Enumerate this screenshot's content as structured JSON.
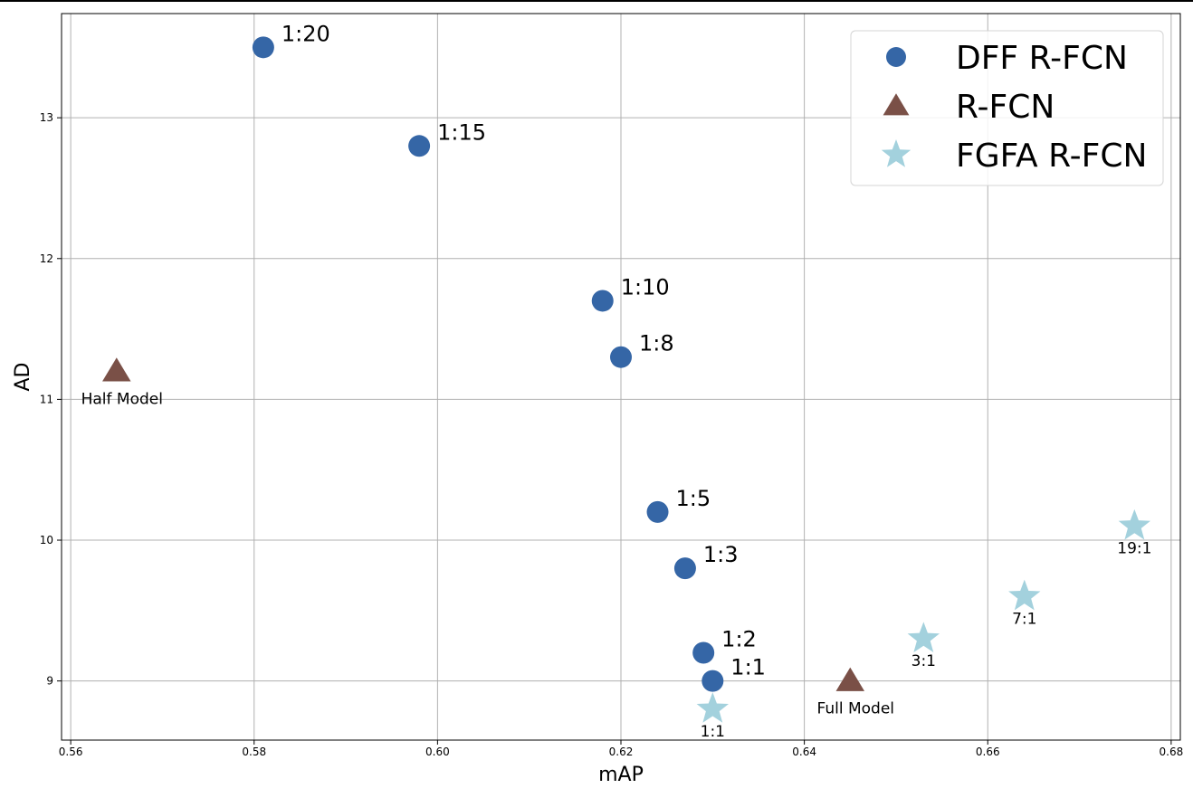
{
  "chart_data": {
    "type": "scatter",
    "xlabel": "mAP",
    "ylabel": "AD",
    "xlim": [
      0.559,
      0.681
    ],
    "ylim": [
      8.58,
      13.74
    ],
    "xticks": [
      {
        "value": 0.56,
        "label": "0.56"
      },
      {
        "value": 0.58,
        "label": "0.58"
      },
      {
        "value": 0.6,
        "label": "0.60"
      },
      {
        "value": 0.62,
        "label": "0.62"
      },
      {
        "value": 0.64,
        "label": "0.64"
      },
      {
        "value": 0.66,
        "label": "0.66"
      },
      {
        "value": 0.68,
        "label": "0.68"
      }
    ],
    "yticks": [
      {
        "value": 9,
        "label": "9"
      },
      {
        "value": 10,
        "label": "10"
      },
      {
        "value": 11,
        "label": "11"
      },
      {
        "value": 12,
        "label": "12"
      },
      {
        "value": 13,
        "label": "13"
      }
    ],
    "grid": true,
    "legend_position": "top-right",
    "series": [
      {
        "name": "DFF R-FCN",
        "marker": "circle",
        "color": "#3566a6",
        "points": [
          {
            "x": 0.581,
            "y": 13.5,
            "label": "1:20"
          },
          {
            "x": 0.598,
            "y": 12.8,
            "label": "1:15"
          },
          {
            "x": 0.618,
            "y": 11.7,
            "label": "1:10"
          },
          {
            "x": 0.62,
            "y": 11.3,
            "label": "1:8"
          },
          {
            "x": 0.624,
            "y": 10.2,
            "label": "1:5"
          },
          {
            "x": 0.627,
            "y": 9.8,
            "label": "1:3"
          },
          {
            "x": 0.629,
            "y": 9.2,
            "label": "1:2"
          },
          {
            "x": 0.63,
            "y": 9.0,
            "label": "1:1"
          }
        ]
      },
      {
        "name": "R-FCN",
        "marker": "triangle",
        "color": "#7a5047",
        "points": [
          {
            "x": 0.565,
            "y": 11.2,
            "label": "Half Model"
          },
          {
            "x": 0.645,
            "y": 9.0,
            "label": "Full Model"
          }
        ]
      },
      {
        "name": "FGFA R-FCN",
        "marker": "star",
        "color": "#a3d1dd",
        "points": [
          {
            "x": 0.63,
            "y": 8.8,
            "label": "1:1"
          },
          {
            "x": 0.653,
            "y": 9.3,
            "label": "3:1"
          },
          {
            "x": 0.664,
            "y": 9.6,
            "label": "7:1"
          },
          {
            "x": 0.676,
            "y": 10.1,
            "label": "19:1"
          }
        ]
      }
    ]
  }
}
